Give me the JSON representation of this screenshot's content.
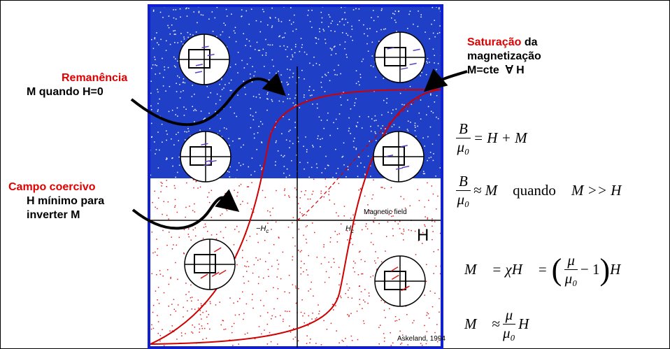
{
  "annotations": {
    "remanencia": {
      "title": "Remanência",
      "text": "M quando H=0"
    },
    "saturacao": {
      "title": "Saturação",
      "title_rest": "da",
      "lines": [
        "magnetização",
        "M=cte  ∀ H"
      ]
    },
    "coercivo": {
      "title": "Campo coercivo",
      "lines": [
        "H mínimo para",
        "inverter M"
      ]
    }
  },
  "figure": {
    "axis_label": "Magnetic field",
    "h_label": "H",
    "neg_hc": "−H",
    "hc": "H",
    "hc_sub": "c",
    "source": "Askeland, 1994"
  },
  "equations": {
    "eq1": {
      "numerator": "B",
      "denominator": "μ₀",
      "rhs": "= H + M"
    },
    "eq2": {
      "numerator": "B",
      "denominator": "μ₀",
      "rhs": "≈ M",
      "condition": "quando",
      "condition_rhs": "M >> H"
    },
    "eq3": {
      "lhs": "M⃗ = χH⃗ =",
      "open": "(",
      "numerator": "μ",
      "denominator": "μ₀",
      "rest": "− 1",
      "close": ")",
      "rhs": "H⃗"
    },
    "eq4": {
      "lhs": "M⃗ ≈",
      "numerator": "μ",
      "denominator": "μ₀",
      "rhs": "H⃗"
    }
  }
}
